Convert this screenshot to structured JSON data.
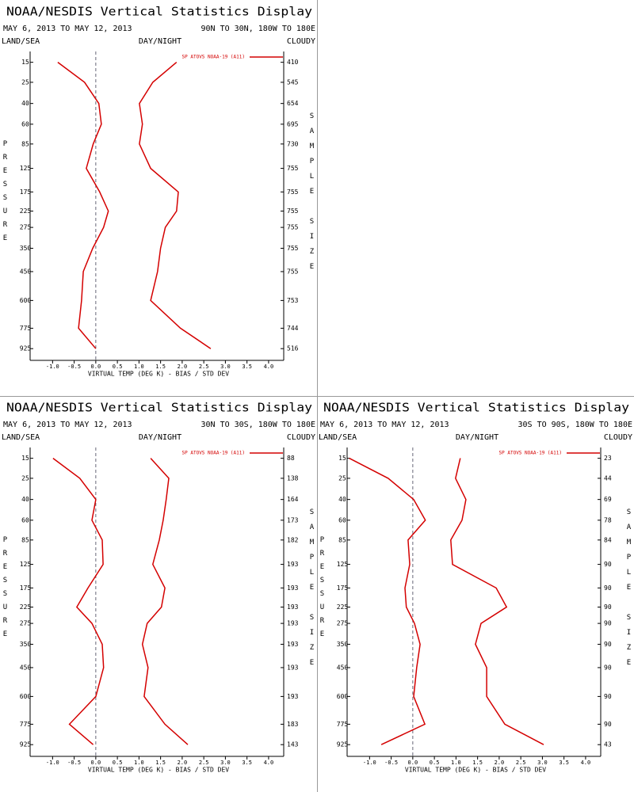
{
  "chart_data": [
    {
      "type": "line",
      "title": "NOAA/NESDIS Vertical Statistics Display",
      "date_range": "MAY 6, 2013 TO MAY 12, 2013",
      "region": "90N TO 30N, 180W TO 180E",
      "left_label": "LAND/SEA",
      "center_label": "DAY/NIGHT",
      "right_label": "CLOUDY",
      "ylabel": "PRESSURE",
      "y2label": "SAMPLE SIZE",
      "xlabel": "VIRTUAL TEMP (DEG K) - BIAS / STD DEV",
      "xlim": [
        -1.52,
        4.35
      ],
      "xticks": [
        {
          "value": -1,
          "label": "-1.0"
        },
        -0.5,
        {
          "value": 0,
          "label": "0.0"
        },
        0.5,
        {
          "value": 1,
          "label": "1.0"
        },
        1.5,
        {
          "value": 2,
          "label": "2.0"
        },
        2.5,
        {
          "value": 3,
          "label": "3.0"
        },
        3.5,
        {
          "value": 4,
          "label": "4.0"
        }
      ],
      "ylim": [
        11,
        1020
      ],
      "yticks": [
        15,
        25,
        40,
        60,
        85,
        125,
        175,
        225,
        275,
        350,
        450,
        600,
        775,
        925
      ],
      "sample_sizes": [
        410,
        545,
        654,
        695,
        730,
        755,
        755,
        755,
        755,
        755,
        755,
        753,
        744,
        516
      ],
      "series": [
        {
          "name": "SP ATOVS NOAA-19 (A11)",
          "color": "#d40000",
          "values": [
            -0.88,
            -0.26,
            0.07,
            0.13,
            -0.06,
            -0.22,
            0.09,
            0.29,
            0.18,
            -0.07,
            -0.29,
            -0.33,
            -0.4,
            0.0
          ],
          "std_dev": [
            1.87,
            1.32,
            1.01,
            1.08,
            1.01,
            1.27,
            1.91,
            1.87,
            1.61,
            1.5,
            1.43,
            1.27,
            1.96,
            2.66
          ]
        }
      ]
    },
    {
      "type": "line",
      "title": "NOAA/NESDIS Vertical Statistics Display",
      "date_range": "MAY 6, 2013 TO MAY 12, 2013",
      "region": "30N TO 30S, 180W TO 180E",
      "left_label": "LAND/SEA",
      "center_label": "DAY/NIGHT",
      "right_label": "CLOUDY",
      "ylabel": "PRESSURE",
      "y2label": "SAMPLE SIZE",
      "xlabel": "VIRTUAL TEMP (DEG K) - BIAS / STD DEV",
      "xlim": [
        -1.52,
        4.35
      ],
      "xticks": [
        {
          "value": -1,
          "label": "-1.0"
        },
        -0.5,
        {
          "value": 0,
          "label": "0.0"
        },
        0.5,
        {
          "value": 1,
          "label": "1.0"
        },
        1.5,
        {
          "value": 2,
          "label": "2.0"
        },
        2.5,
        {
          "value": 3,
          "label": "3.0"
        },
        3.5,
        {
          "value": 4,
          "label": "4.0"
        }
      ],
      "ylim": [
        11,
        1020
      ],
      "yticks": [
        15,
        25,
        40,
        60,
        85,
        125,
        175,
        225,
        275,
        350,
        450,
        600,
        775,
        925
      ],
      "sample_sizes": [
        88,
        138,
        164,
        173,
        182,
        193,
        193,
        193,
        193,
        193,
        193,
        193,
        183,
        143
      ],
      "series": [
        {
          "name": "SP ATOVS NOAA-19 (A11)",
          "color": "#d40000",
          "values": [
            -0.99,
            -0.37,
            0.0,
            -0.09,
            0.15,
            0.17,
            -0.18,
            -0.44,
            -0.09,
            0.15,
            0.18,
            0.0,
            -0.61,
            -0.06
          ],
          "std_dev": [
            1.27,
            1.69,
            1.63,
            1.56,
            1.47,
            1.32,
            1.6,
            1.52,
            1.19,
            1.08,
            1.21,
            1.12,
            1.6,
            2.13
          ]
        }
      ]
    },
    {
      "type": "line",
      "title": "NOAA/NESDIS Vertical Statistics Display",
      "date_range": "MAY 6, 2013 TO MAY 12, 2013",
      "region": "30S TO 90S, 180W TO 180E",
      "left_label": "LAND/SEA",
      "center_label": "DAY/NIGHT",
      "right_label": "CLOUDY",
      "ylabel": "PRESSURE",
      "y2label": "SAMPLE SIZE",
      "xlabel": "VIRTUAL TEMP (DEG K) - BIAS / STD DEV",
      "xlim": [
        -1.52,
        4.35
      ],
      "xticks": [
        {
          "value": -1,
          "label": "-1.0"
        },
        -0.5,
        {
          "value": 0,
          "label": "0.0"
        },
        0.5,
        {
          "value": 1,
          "label": "1.0"
        },
        1.5,
        {
          "value": 2,
          "label": "2.0"
        },
        2.5,
        {
          "value": 3,
          "label": "3.0"
        },
        3.5,
        {
          "value": 4,
          "label": "4.0"
        }
      ],
      "ylim": [
        11,
        1020
      ],
      "yticks": [
        15,
        25,
        40,
        60,
        85,
        125,
        175,
        225,
        275,
        350,
        450,
        600,
        775,
        925
      ],
      "sample_sizes": [
        23,
        44,
        69,
        78,
        84,
        90,
        90,
        90,
        90,
        90,
        90,
        90,
        90,
        43
      ],
      "series": [
        {
          "name": "SP ATOVS NOAA-19 (A11)",
          "color": "#d40000",
          "values": [
            -1.47,
            -0.57,
            0.02,
            0.29,
            -0.11,
            -0.07,
            -0.18,
            -0.15,
            0.04,
            0.17,
            0.09,
            0.02,
            0.28,
            -0.73
          ],
          "std_dev": [
            1.1,
            0.99,
            1.23,
            1.14,
            0.88,
            0.92,
            1.93,
            2.17,
            1.58,
            1.45,
            1.71,
            1.71,
            2.13,
            3.03
          ]
        }
      ]
    }
  ]
}
